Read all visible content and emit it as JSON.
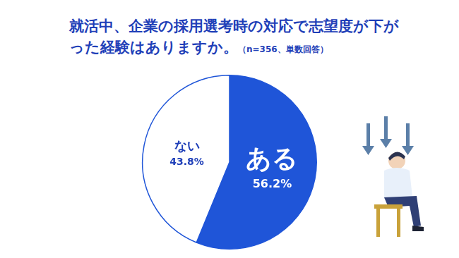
{
  "chart_data": {
    "type": "pie",
    "title": "就活中、企業の採用選考時の対応で志望度が下がった経験はありますか。",
    "subtitle": "（n=356、単数回答）",
    "categories": [
      "ある",
      "ない"
    ],
    "values": [
      56.2,
      43.8
    ],
    "value_labels": [
      "56.2%",
      "43.8%"
    ],
    "colors": [
      "#1f55d8",
      "#ffffff"
    ],
    "data_labels": true,
    "legend": false
  }
}
